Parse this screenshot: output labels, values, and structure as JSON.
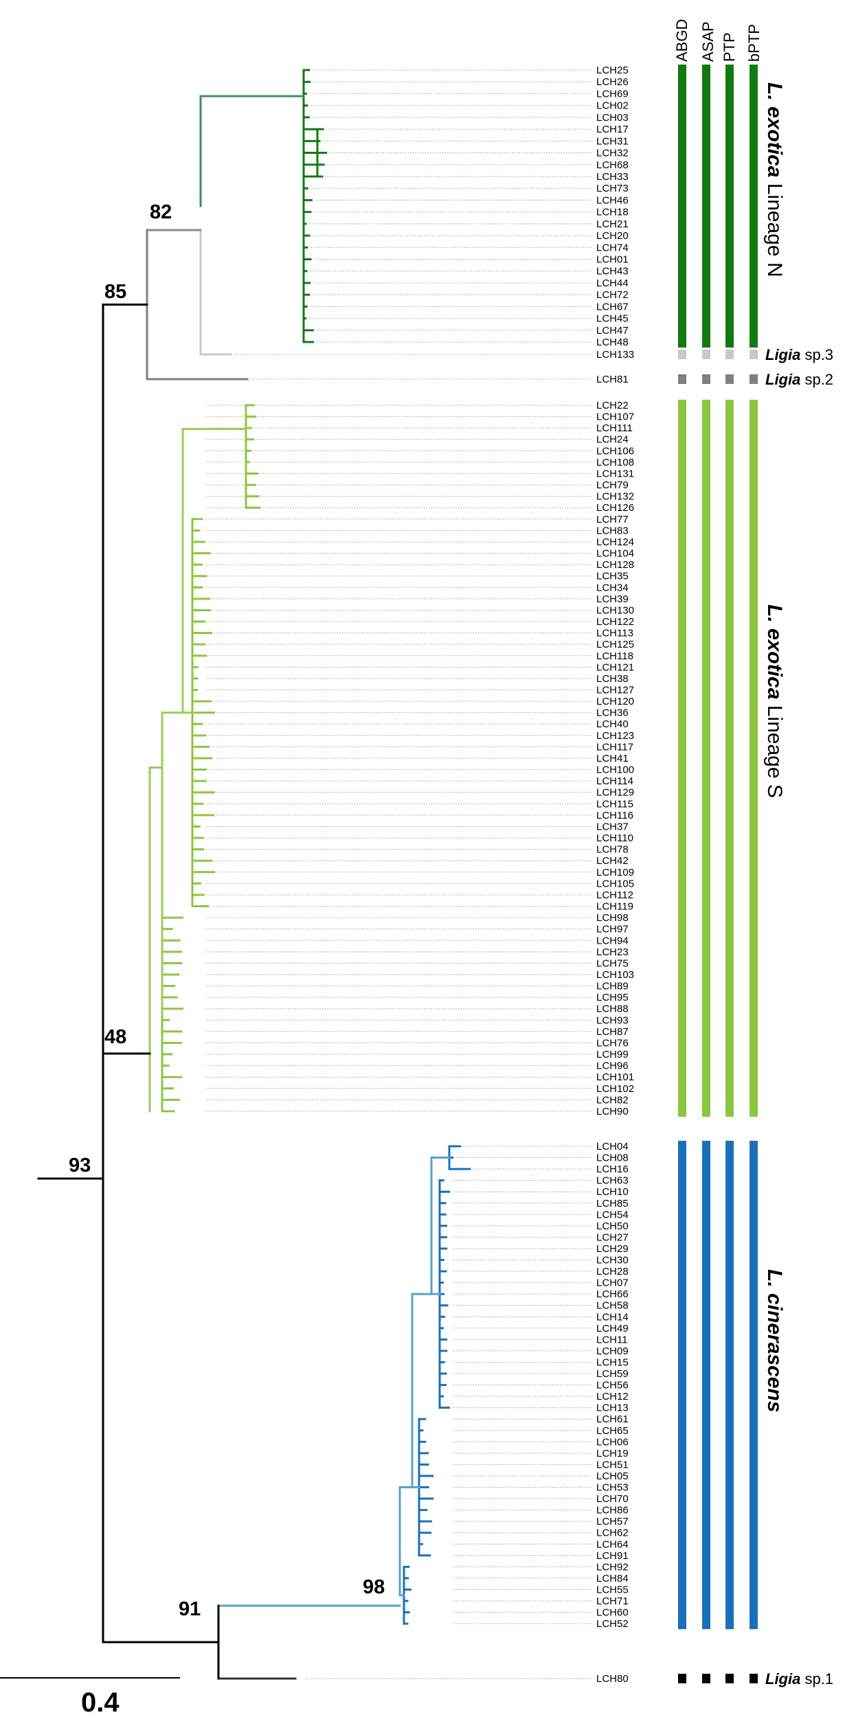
{
  "methods": [
    "ABGD",
    "ASAP",
    "PTP",
    "bPTP"
  ],
  "scale_label": "0.4",
  "colors": {
    "lineage_n": "#117a11",
    "lineage_n_branch": "#3f8f5a",
    "ligia_sp3": "#c8c8c8",
    "ligia_sp2": "#808080",
    "lineage_s": "#8cc63f",
    "lineage_s_branch": "#9bcc5a",
    "cinerascens": "#1a70b8",
    "cinerascens_branch": "#5aa0cf",
    "ligia_sp1": "#000000",
    "backbone": "#000000"
  },
  "support_values": [
    {
      "id": "n82",
      "value": "82"
    },
    {
      "id": "n85",
      "value": "85"
    },
    {
      "id": "n48",
      "value": "48"
    },
    {
      "id": "n93",
      "value": "93"
    },
    {
      "id": "n91",
      "value": "91"
    },
    {
      "id": "n98",
      "value": "98"
    }
  ],
  "clades": [
    {
      "id": "lineage_n",
      "species": "L. exotica",
      "suffix": " Lineage N",
      "color_key": "lineage_n",
      "tips": [
        "LCH25",
        "LCH26",
        "LCH69",
        "LCH02",
        "LCH03",
        "LCH17",
        "LCH31",
        "LCH32",
        "LCH68",
        "LCH33",
        "LCH73",
        "LCH46",
        "LCH18",
        "LCH21",
        "LCH20",
        "LCH74",
        "LCH01",
        "LCH43",
        "LCH44",
        "LCH72",
        "LCH67",
        "LCH45",
        "LCH47",
        "LCH48"
      ]
    },
    {
      "id": "ligia_sp3",
      "species": "Ligia",
      "suffix": " sp.3",
      "color_key": "ligia_sp3",
      "tips": [
        "LCH133"
      ]
    },
    {
      "id": "ligia_sp2",
      "species": "Ligia",
      "suffix": " sp.2",
      "color_key": "ligia_sp2",
      "tips": [
        "LCH81"
      ]
    },
    {
      "id": "lineage_s",
      "species": "L. exotica",
      "suffix": " Lineage S",
      "color_key": "lineage_s",
      "tips": [
        "LCH22",
        "LCH107",
        "LCH111",
        "LCH24",
        "LCH106",
        "LCH108",
        "LCH131",
        "LCH79",
        "LCH132",
        "LCH126",
        "LCH77",
        "LCH83",
        "LCH124",
        "LCH104",
        "LCH128",
        "LCH35",
        "LCH34",
        "LCH39",
        "LCH130",
        "LCH122",
        "LCH113",
        "LCH125",
        "LCH118",
        "LCH121",
        "LCH38",
        "LCH127",
        "LCH120",
        "LCH36",
        "LCH40",
        "LCH123",
        "LCH117",
        "LCH41",
        "LCH100",
        "LCH114",
        "LCH129",
        "LCH115",
        "LCH116",
        "LCH37",
        "LCH110",
        "LCH78",
        "LCH42",
        "LCH109",
        "LCH105",
        "LCH112",
        "LCH119",
        "LCH98",
        "LCH97",
        "LCH94",
        "LCH23",
        "LCH75",
        "LCH103",
        "LCH89",
        "LCH95",
        "LCH88",
        "LCH93",
        "LCH87",
        "LCH76",
        "LCH99",
        "LCH96",
        "LCH101",
        "LCH102",
        "LCH82",
        "LCH90"
      ]
    },
    {
      "id": "cinerascens",
      "species": "L. cinerascens",
      "suffix": "",
      "color_key": "cinerascens",
      "tips": [
        "LCH04",
        "LCH08",
        "LCH16",
        "LCH63",
        "LCH10",
        "LCH85",
        "LCH54",
        "LCH50",
        "LCH27",
        "LCH29",
        "LCH30",
        "LCH28",
        "LCH07",
        "LCH66",
        "LCH58",
        "LCH14",
        "LCH49",
        "LCH11",
        "LCH09",
        "LCH15",
        "LCH59",
        "LCH56",
        "LCH12",
        "LCH13",
        "LCH61",
        "LCH65",
        "LCH06",
        "LCH19",
        "LCH51",
        "LCH05",
        "LCH53",
        "LCH70",
        "LCH86",
        "LCH57",
        "LCH62",
        "LCH64",
        "LCH91",
        "LCH92",
        "LCH84",
        "LCH55",
        "LCH71",
        "LCH60",
        "LCH52"
      ]
    },
    {
      "id": "ligia_sp1",
      "species": "Ligia",
      "suffix": " sp.1",
      "color_key": "ligia_sp1",
      "tips": [
        "LCH80"
      ]
    }
  ]
}
